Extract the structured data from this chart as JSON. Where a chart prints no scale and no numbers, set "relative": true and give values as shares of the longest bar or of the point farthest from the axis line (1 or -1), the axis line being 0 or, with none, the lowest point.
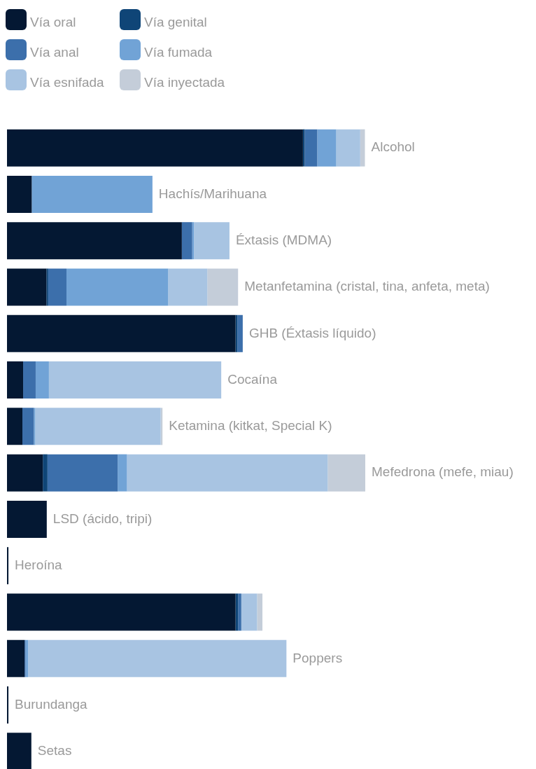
{
  "chart_data": {
    "type": "bar",
    "orientation": "horizontal",
    "stacked": true,
    "relative": true,
    "legend": "top left",
    "categories": [
      "Alcohol",
      "Hachís/Marihuana",
      "Éxtasis (MDMA)",
      "Metanfetamina (cristal, tina, anfeta, meta)",
      "GHB (Éxtasis líquido)",
      "Cocaína",
      "Ketamina (kitkat, Special K)",
      "Mefedrona (mefe, miau)",
      "LSD (ácido, tripi)",
      "Heroína",
      null,
      "Poppers",
      "Burundanga",
      "Setas"
    ],
    "series": [
      {
        "name": "Vía oral",
        "color": "#041833",
        "values": [
          0.826,
          0.069,
          0.488,
          0.11,
          0.638,
          0.045,
          0.043,
          0.1,
          0.111,
          0.004,
          0.638,
          0.049,
          0.004,
          0.068
        ]
      },
      {
        "name": "Vía genital",
        "color": "#0f4577",
        "values": [
          0.005,
          0,
          0,
          0.005,
          0.005,
          0,
          0,
          0.013,
          0,
          0,
          0.007,
          0,
          0,
          0
        ]
      },
      {
        "name": "Vía anal",
        "color": "#3c6fab",
        "values": [
          0.035,
          0,
          0.029,
          0.051,
          0.015,
          0.035,
          0.032,
          0.196,
          0,
          0,
          0.009,
          0.003,
          0,
          0
        ]
      },
      {
        "name": "Vía fumada",
        "color": "#71a3d6",
        "values": [
          0.053,
          0.337,
          0.005,
          0.284,
          0,
          0.037,
          0.004,
          0.026,
          0,
          0,
          0,
          0.007,
          0,
          0
        ]
      },
      {
        "name": "Vía esnifada",
        "color": "#a8c4e2",
        "values": [
          0.067,
          0,
          0.099,
          0.109,
          0,
          0.481,
          0.35,
          0.56,
          0,
          null,
          0.044,
          0.721,
          0,
          0
        ]
      },
      {
        "name": "Vía inyectada",
        "color": "#c4cdd9",
        "values": [
          0.013,
          0,
          0,
          0.086,
          0,
          0,
          0.005,
          0.105,
          0,
          0,
          0.015,
          0,
          0,
          0
        ]
      }
    ]
  }
}
